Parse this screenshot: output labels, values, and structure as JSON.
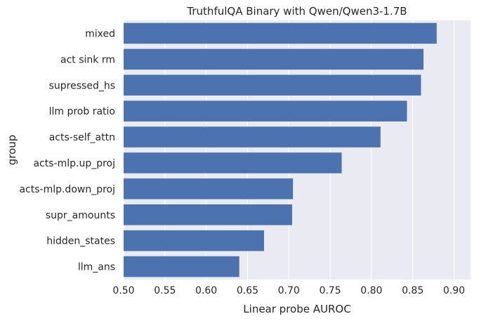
{
  "chart_data": {
    "type": "bar",
    "orientation": "horizontal",
    "title": "TruthfulQA Binary with Qwen/Qwen3-1.7B",
    "xlabel": "Linear probe AUROC",
    "ylabel": "group",
    "xlim": [
      0.5,
      0.92
    ],
    "x_ticks": [
      "0.50",
      "0.55",
      "0.60",
      "0.65",
      "0.70",
      "0.75",
      "0.80",
      "0.85",
      "0.90"
    ],
    "grid": true,
    "categories": [
      "mixed",
      "act sink rm",
      "supressed_hs",
      "llm prob ratio",
      "acts-self_attn",
      "acts-mlp.up_proj",
      "acts-mlp.down_proj",
      "supr_amounts",
      "hidden_states",
      "llm_ans"
    ],
    "values": [
      0.879,
      0.863,
      0.86,
      0.843,
      0.811,
      0.764,
      0.705,
      0.704,
      0.67,
      0.64
    ],
    "colors": {
      "bar": "#4c72b0",
      "plot_background": "#eaeaf2",
      "grid": "#ffffff"
    }
  }
}
